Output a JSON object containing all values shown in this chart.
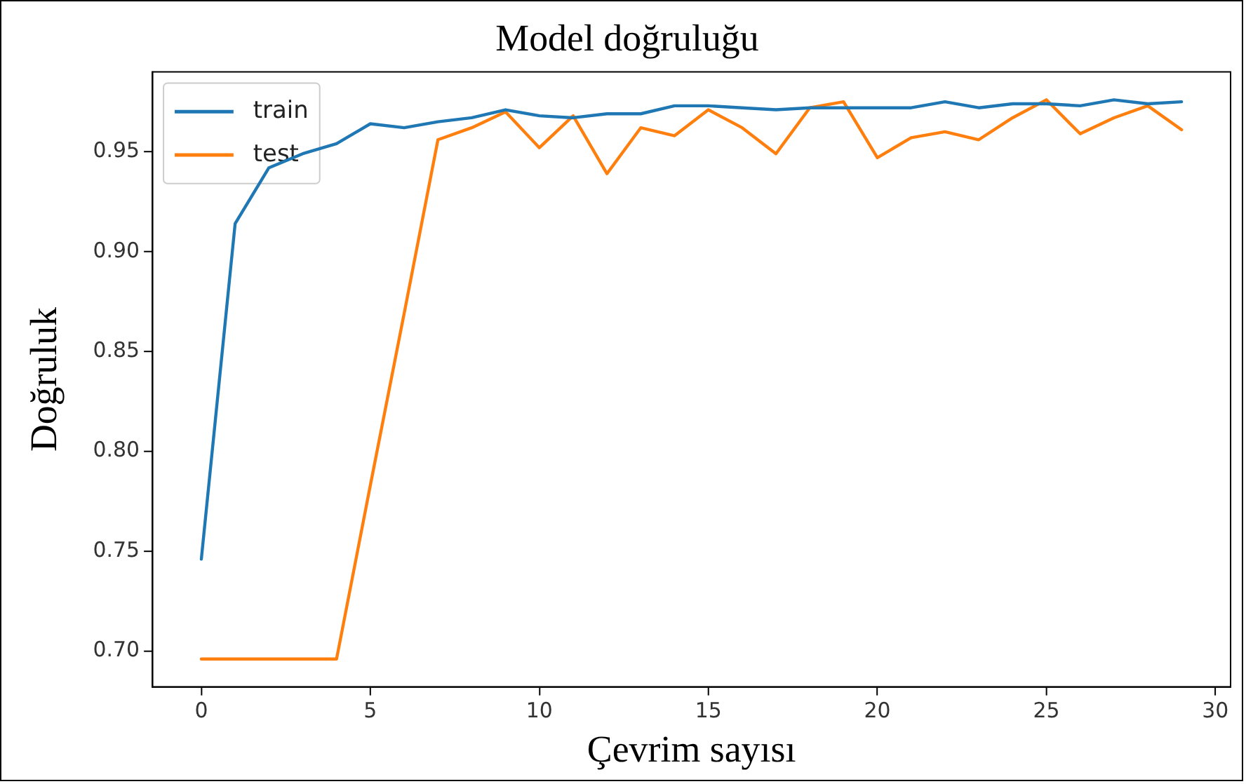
{
  "chart_data": {
    "type": "line",
    "title": "Model doğruluğu",
    "xlabel": "Çevrim sayısı",
    "ylabel": "Doğruluk",
    "x": [
      0,
      1,
      2,
      3,
      4,
      5,
      6,
      7,
      8,
      9,
      10,
      11,
      12,
      13,
      14,
      15,
      16,
      17,
      18,
      19,
      20,
      21,
      22,
      23,
      24,
      25,
      26,
      27,
      28,
      29
    ],
    "series": [
      {
        "name": "train",
        "color": "#1f77b4",
        "values": [
          0.746,
          0.914,
          0.942,
          0.949,
          0.954,
          0.964,
          0.962,
          0.965,
          0.967,
          0.971,
          0.968,
          0.967,
          0.969,
          0.969,
          0.973,
          0.973,
          0.972,
          0.971,
          0.972,
          0.972,
          0.972,
          0.972,
          0.975,
          0.972,
          0.974,
          0.974,
          0.973,
          0.976,
          0.974,
          0.975
        ]
      },
      {
        "name": "test",
        "color": "#ff7f0e",
        "values": [
          0.696,
          0.696,
          0.696,
          0.696,
          0.696,
          0.783,
          0.869,
          0.956,
          0.962,
          0.97,
          0.952,
          0.968,
          0.939,
          0.962,
          0.958,
          0.971,
          0.962,
          0.949,
          0.972,
          0.975,
          0.947,
          0.957,
          0.96,
          0.956,
          0.967,
          0.976,
          0.959,
          0.967,
          0.973,
          0.961
        ]
      }
    ],
    "xlim": [
      -1.45,
      30.45
    ],
    "ylim": [
      0.682,
      0.99
    ],
    "xticks": [
      0,
      5,
      10,
      15,
      20,
      25,
      30
    ],
    "yticks": [
      {
        "value": 0.7,
        "label": "0.70"
      },
      {
        "value": 0.75,
        "label": "0.75"
      },
      {
        "value": 0.8,
        "label": "0.80"
      },
      {
        "value": 0.85,
        "label": "0.85"
      },
      {
        "value": 0.9,
        "label": "0.90"
      },
      {
        "value": 0.95,
        "label": "0.95"
      }
    ],
    "grid": false,
    "legend": "top left",
    "marker": "none",
    "line_style": "solid"
  }
}
